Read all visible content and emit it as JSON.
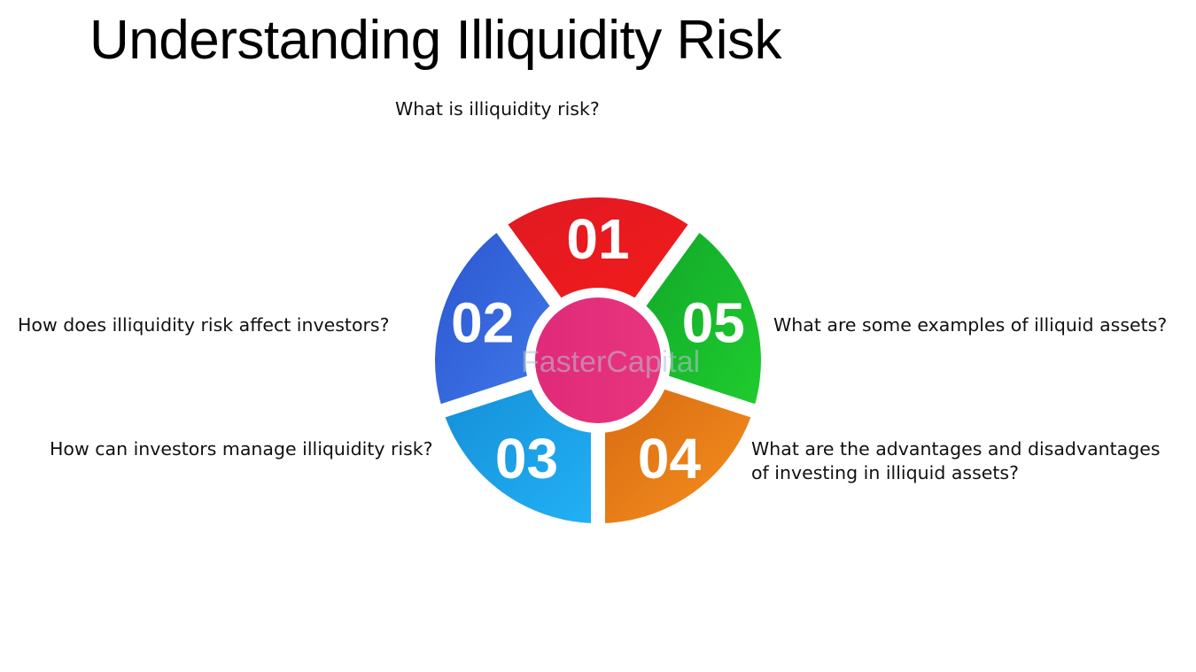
{
  "title": "Understanding Illiquidity Risk",
  "segments": [
    {
      "number": "01",
      "question": "What is illiquidity risk?",
      "color_start": "#e01a22",
      "color_end": "#f21b1b"
    },
    {
      "number": "02",
      "question": "How does illiquidity risk affect investors?",
      "color_start": "#2c56d0",
      "color_end": "#3f78e8"
    },
    {
      "number": "03",
      "question": "How can investors manage illiquidity risk?",
      "color_start": "#1590d8",
      "color_end": "#22b0f5"
    },
    {
      "number": "04",
      "question": "What are the advantages and disadvantages\nof investing in illiquid assets?",
      "color_start": "#d96b12",
      "color_end": "#f5901f"
    },
    {
      "number": "05",
      "question": "What are some examples of illiquid assets?",
      "color_start": "#12a82a",
      "color_end": "#1fcc2e"
    }
  ],
  "center_color": "#e8357e",
  "watermark": "FasterCapital"
}
